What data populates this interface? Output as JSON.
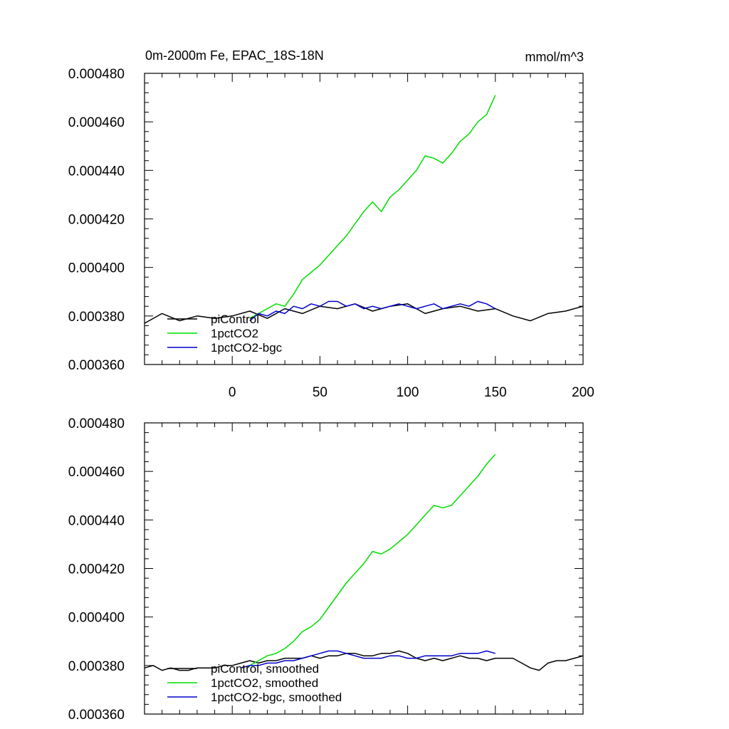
{
  "header": {
    "title": "0m-2000m Fe, EPAC_18S-18N",
    "units": "mmol/m^3"
  },
  "chart_data": [
    {
      "type": "line",
      "panel": "top",
      "xlim": [
        -50,
        200
      ],
      "ylim": [
        0.00036,
        0.00048
      ],
      "xticks": [
        0,
        50,
        100,
        150,
        200
      ],
      "xtick_labels": [
        "0",
        "50",
        "100",
        "150",
        "200"
      ],
      "yticks": [
        0.00036,
        0.00038,
        0.0004,
        0.00042,
        0.00044,
        0.00046,
        0.00048
      ],
      "ytick_labels": [
        "0.000360",
        "0.000380",
        "0.000400",
        "0.000420",
        "0.000440",
        "0.000460",
        "0.000480"
      ],
      "legend": "bottom-left",
      "series": [
        {
          "name": "piControl",
          "color": "#000000",
          "x": [
            -50,
            -40,
            -30,
            -20,
            -10,
            0,
            10,
            20,
            30,
            40,
            50,
            60,
            70,
            80,
            90,
            100,
            110,
            120,
            130,
            140,
            150,
            160,
            170,
            180,
            190,
            200
          ],
          "y": [
            0.000377,
            0.000381,
            0.000378,
            0.00038,
            0.000379,
            0.00038,
            0.000382,
            0.000379,
            0.000383,
            0.000381,
            0.000384,
            0.000383,
            0.000385,
            0.000382,
            0.000384,
            0.000385,
            0.000381,
            0.000383,
            0.000384,
            0.000382,
            0.000383,
            0.00038,
            0.000378,
            0.000381,
            0.000382,
            0.000384
          ]
        },
        {
          "name": "1pctCO2",
          "color": "#00dd00",
          "x": [
            10,
            15,
            20,
            25,
            30,
            35,
            40,
            45,
            50,
            55,
            60,
            65,
            70,
            75,
            80,
            85,
            90,
            95,
            100,
            105,
            110,
            115,
            120,
            125,
            130,
            135,
            140,
            145,
            150
          ],
          "y": [
            0.000379,
            0.000381,
            0.000383,
            0.000385,
            0.000384,
            0.000389,
            0.000395,
            0.000398,
            0.000401,
            0.000405,
            0.000409,
            0.000413,
            0.000418,
            0.000423,
            0.000427,
            0.000423,
            0.000429,
            0.000432,
            0.000436,
            0.00044,
            0.000446,
            0.000445,
            0.000443,
            0.000447,
            0.000452,
            0.000455,
            0.00046,
            0.000463,
            0.000471
          ]
        },
        {
          "name": "1pctCO2-bgc",
          "color": "#0000cc",
          "x": [
            10,
            15,
            20,
            25,
            30,
            35,
            40,
            45,
            50,
            55,
            60,
            65,
            70,
            75,
            80,
            85,
            90,
            95,
            100,
            105,
            110,
            115,
            120,
            125,
            130,
            135,
            140,
            145,
            150
          ],
          "y": [
            0.000378,
            0.000381,
            0.00038,
            0.000382,
            0.000381,
            0.000384,
            0.000383,
            0.000385,
            0.000384,
            0.000386,
            0.000386,
            0.000384,
            0.000385,
            0.000383,
            0.000384,
            0.000383,
            0.000384,
            0.000385,
            0.000384,
            0.000383,
            0.000384,
            0.000385,
            0.000383,
            0.000384,
            0.000385,
            0.000384,
            0.000386,
            0.000385,
            0.000383
          ]
        }
      ]
    },
    {
      "type": "line",
      "panel": "bottom",
      "xlim": [
        -50,
        200
      ],
      "ylim": [
        0.00036,
        0.00048
      ],
      "yticks": [
        0.00036,
        0.00038,
        0.0004,
        0.00042,
        0.00044,
        0.00046,
        0.00048
      ],
      "ytick_labels": [
        "0.000360",
        "0.000380",
        "0.000400",
        "0.000420",
        "0.000440",
        "0.000460",
        "0.000480"
      ],
      "legend": "bottom-left",
      "series": [
        {
          "name": "piControl, smoothed",
          "color": "#000000",
          "x": [
            -50,
            -45,
            -40,
            -35,
            -30,
            -25,
            -20,
            -15,
            -10,
            -5,
            0,
            5,
            10,
            15,
            20,
            25,
            30,
            35,
            40,
            45,
            50,
            55,
            60,
            65,
            70,
            75,
            80,
            85,
            90,
            95,
            100,
            105,
            110,
            115,
            120,
            125,
            130,
            135,
            140,
            145,
            150,
            155,
            160,
            165,
            170,
            175,
            180,
            185,
            190,
            195,
            200
          ],
          "y": [
            0.000379,
            0.00038,
            0.000378,
            0.000379,
            0.000378,
            0.000378,
            0.000379,
            0.000379,
            0.000379,
            0.00038,
            0.00038,
            0.000381,
            0.000382,
            0.000381,
            0.000382,
            0.000382,
            0.000383,
            0.000383,
            0.000383,
            0.000384,
            0.000383,
            0.000384,
            0.000384,
            0.000385,
            0.000385,
            0.000384,
            0.000384,
            0.000385,
            0.000385,
            0.000386,
            0.000385,
            0.000383,
            0.000382,
            0.000383,
            0.000382,
            0.000383,
            0.000384,
            0.000383,
            0.000383,
            0.000382,
            0.000383,
            0.000383,
            0.000383,
            0.000381,
            0.000379,
            0.000378,
            0.000381,
            0.000382,
            0.000382,
            0.000383,
            0.000384
          ]
        },
        {
          "name": "1pctCO2, smoothed",
          "color": "#00dd00",
          "x": [
            5,
            10,
            15,
            20,
            25,
            30,
            35,
            40,
            45,
            50,
            55,
            60,
            65,
            70,
            75,
            80,
            85,
            90,
            95,
            100,
            105,
            110,
            115,
            120,
            125,
            130,
            135,
            140,
            145,
            150
          ],
          "y": [
            0.000379,
            0.00038,
            0.000382,
            0.000384,
            0.000385,
            0.000387,
            0.00039,
            0.000394,
            0.000396,
            0.000399,
            0.000404,
            0.000409,
            0.000414,
            0.000418,
            0.000422,
            0.000427,
            0.000426,
            0.000428,
            0.000431,
            0.000434,
            0.000438,
            0.000442,
            0.000446,
            0.000445,
            0.000446,
            0.00045,
            0.000454,
            0.000458,
            0.000463,
            0.000467
          ]
        },
        {
          "name": "1pctCO2-bgc, smoothed",
          "color": "#0000cc",
          "x": [
            5,
            10,
            15,
            20,
            25,
            30,
            35,
            40,
            45,
            50,
            55,
            60,
            65,
            70,
            75,
            80,
            85,
            90,
            95,
            100,
            105,
            110,
            115,
            120,
            125,
            130,
            135,
            140,
            145,
            150
          ],
          "y": [
            0.000379,
            0.00038,
            0.00038,
            0.000381,
            0.000381,
            0.000382,
            0.000382,
            0.000383,
            0.000384,
            0.000385,
            0.000386,
            0.000386,
            0.000385,
            0.000384,
            0.000383,
            0.000383,
            0.000383,
            0.000384,
            0.000384,
            0.000383,
            0.000383,
            0.000384,
            0.000384,
            0.000384,
            0.000384,
            0.000385,
            0.000385,
            0.000385,
            0.000386,
            0.000385
          ]
        }
      ]
    }
  ]
}
